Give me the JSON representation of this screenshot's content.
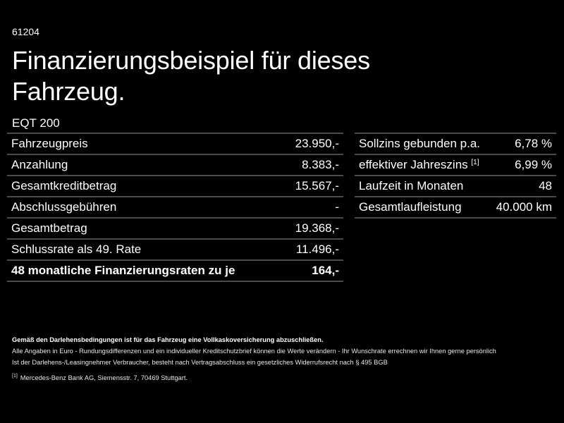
{
  "header": {
    "code": "61204",
    "title": "Finanzierungsbeispiel für dieses Fahrzeug.",
    "model": "EQT 200"
  },
  "left_table": {
    "rows": [
      {
        "label": "Fahrzeugpreis",
        "value": "23.950,-"
      },
      {
        "label": "Anzahlung",
        "value": "8.383,-"
      },
      {
        "label": "Gesamtkreditbetrag",
        "value": "15.567,-"
      },
      {
        "label": "Abschlussgebühren",
        "value": "-"
      },
      {
        "label": "Gesamtbetrag",
        "value": "19.368,-"
      },
      {
        "label": "Schlussrate als 49. Rate",
        "value": "11.496,-"
      },
      {
        "label": "48 monatliche Finanzierungsraten zu je",
        "value": "164,-"
      }
    ]
  },
  "right_table": {
    "rows": [
      {
        "label": "Sollzins gebunden p.a.",
        "value": "6,78 %"
      },
      {
        "label": "effektiver Jahreszins",
        "footnote": "[1]",
        "value": "6,99 %"
      },
      {
        "label": "Laufzeit in Monaten",
        "value": "48"
      },
      {
        "label": "Gesamtlaufleistung",
        "value": "40.000 km"
      }
    ]
  },
  "notes": {
    "insurance": "Gemäß den Darlehensbedingungen ist für das Fahrzeug eine Vollkaskoversicherung abzuschließen.",
    "line1": "Alle Angaben in Euro - Rundungsdifferenzen und ein individueller Kreditschutzbrief können die Werte verändern - Ihr Wunschrate errechnen wir Ihnen gerne persönlich",
    "line2": "Ist der Darlehens-/Leasingnehmer Verbraucher, besteht nach Vertragsabschluss ein gesetzliches Widerrufsrecht nach § 495 BGB",
    "footnote_mark": "[1]",
    "footnote_text": "Mercedes-Benz Bank AG, Siemensstr. 7, 70469 Stuttgart."
  }
}
